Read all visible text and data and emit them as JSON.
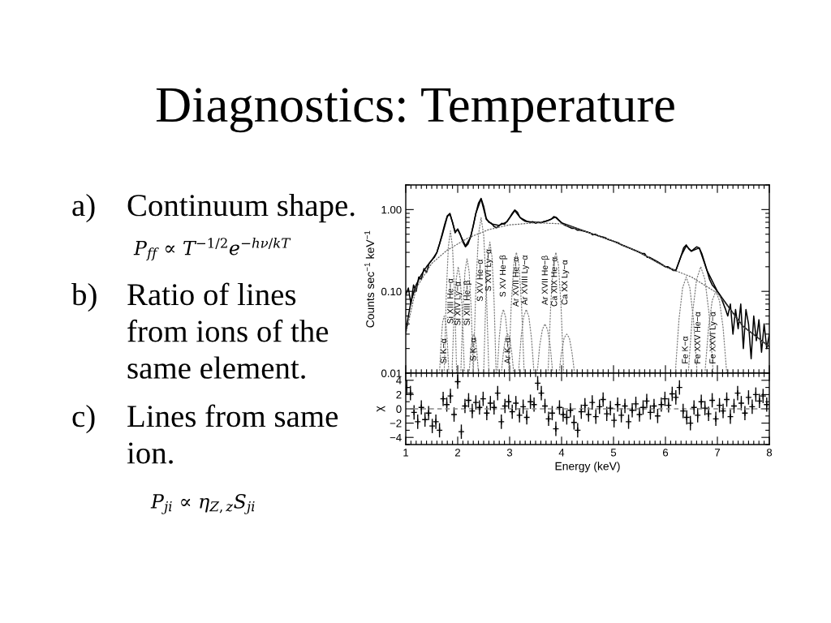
{
  "chart_data": [
    {
      "type": "line",
      "title": "Diagnostics: Temperature",
      "ylabel": "Counts sec$^{−1}$ keV$^{−1}$",
      "log": true,
      "xlim": [
        1,
        8
      ],
      "xticks": [
        1,
        2,
        3,
        4,
        5,
        6,
        7,
        8
      ],
      "ylim": [
        0.01,
        2
      ],
      "yticks": [
        {
          "value": 0.01,
          "label": "0.01"
        },
        {
          "value": 0.1,
          "label": "0.10"
        },
        {
          "value": 1,
          "label": "1.00"
        }
      ],
      "tick_labels": "y",
      "grid": false,
      "annotations": [
        "a)",
        "Continuum shape.",
        "P$_{ff}$ ∝ T$^{−1/2}$e$^{−hν/kT}$",
        "b)",
        "Ratio of lines\nfrom ions of the\nsame element.",
        "c)",
        "Lines from same\nion.",
        "P$_{ji}$ ∝ η$_{Z,z}$S$_{ji}$",
        "Si K−α",
        "Si XIII He−α",
        "Si XIV Ly−α",
        "Si XIII He−β",
        "S K−α",
        "S XV He−α",
        "S XVI Ly−α",
        "S XV He−β",
        "Ar K−α",
        "Ar XVII He−α",
        "Ar XVIII Ly−α",
        "Ar XVII He−β",
        "Ca XIX He−α",
        "Ca XX Ly−α",
        "Fe K−α",
        "Fe XXV He−α",
        "Fe XXVI Ly−α"
      ],
      "series": [
        {
          "color": "#000000",
          "x": [
            1.0,
            1.05,
            1.1,
            1.15,
            1.2,
            1.25,
            1.3,
            1.35,
            1.4,
            1.45,
            1.5,
            1.55,
            1.6,
            1.65,
            1.7,
            1.75,
            1.8,
            1.85,
            1.9,
            1.95,
            2.0,
            2.05,
            2.1,
            2.15,
            2.2,
            2.25,
            2.3,
            2.35,
            2.4,
            2.45,
            2.5,
            2.55,
            2.6,
            2.65,
            2.7,
            2.75,
            2.8,
            2.85,
            2.9,
            2.95,
            3.0,
            3.05,
            3.1,
            3.15,
            3.2,
            3.25,
            3.3,
            3.35,
            3.4,
            3.45,
            3.5,
            3.55,
            3.6,
            3.65,
            3.7,
            3.75,
            3.8,
            3.85,
            3.9,
            3.95,
            4.0,
            4.05,
            4.1,
            4.15,
            4.2,
            4.25,
            4.3,
            4.35,
            4.4,
            4.45,
            4.5,
            4.55,
            4.6,
            4.65,
            4.7,
            4.75,
            4.8,
            4.85,
            4.9,
            4.95,
            5.0,
            5.05,
            5.1,
            5.15,
            5.2,
            5.25,
            5.3,
            5.35,
            5.4,
            5.45,
            5.5,
            5.55,
            5.6,
            5.65,
            5.7,
            5.75,
            5.8,
            5.85,
            5.9,
            5.95,
            6.0,
            6.05,
            6.1,
            6.15,
            6.2,
            6.25,
            6.3,
            6.35,
            6.4,
            6.45,
            6.5,
            6.55,
            6.6,
            6.65,
            6.7,
            6.75,
            6.8,
            6.85,
            6.9,
            6.95,
            7.0,
            7.05,
            7.1,
            7.15,
            7.2,
            7.25,
            7.3,
            7.35,
            7.4,
            7.45,
            7.5,
            7.55,
            7.6,
            7.65,
            7.7,
            7.75,
            7.8,
            7.85,
            7.9,
            7.95,
            8.0
          ],
          "values": [
            0.09,
            0.11,
            0.07,
            0.12,
            0.1,
            0.15,
            0.14,
            0.19,
            0.17,
            0.22,
            0.24,
            0.26,
            0.3,
            0.38,
            0.5,
            0.66,
            0.84,
            0.9,
            0.7,
            0.52,
            0.58,
            0.5,
            0.4,
            0.35,
            0.38,
            0.47,
            0.63,
            0.9,
            1.2,
            1.37,
            1.1,
            0.78,
            0.7,
            0.68,
            0.62,
            0.6,
            0.64,
            0.68,
            0.66,
            0.72,
            0.8,
            0.9,
            0.99,
            0.93,
            0.8,
            0.75,
            0.72,
            0.71,
            0.7,
            0.71,
            0.68,
            0.7,
            0.69,
            0.71,
            0.72,
            0.74,
            0.76,
            0.82,
            0.8,
            0.74,
            0.69,
            0.65,
            0.63,
            0.61,
            0.59,
            0.59,
            0.56,
            0.56,
            0.55,
            0.54,
            0.53,
            0.52,
            0.49,
            0.5,
            0.48,
            0.47,
            0.46,
            0.45,
            0.43,
            0.42,
            0.41,
            0.4,
            0.39,
            0.37,
            0.36,
            0.35,
            0.34,
            0.33,
            0.32,
            0.31,
            0.3,
            0.29,
            0.29,
            0.26,
            0.26,
            0.25,
            0.24,
            0.23,
            0.22,
            0.21,
            0.2,
            0.2,
            0.19,
            0.18,
            0.18,
            0.22,
            0.27,
            0.34,
            0.37,
            0.33,
            0.31,
            0.33,
            0.35,
            0.34,
            0.29,
            0.23,
            0.18,
            0.14,
            0.12,
            0.11,
            0.1,
            0.09,
            0.075,
            0.062,
            0.05,
            0.07,
            0.03,
            0.06,
            0.035,
            0.07,
            0.02,
            0.06,
            0.04,
            0.015,
            0.05,
            0.025,
            0.045,
            0.018,
            0.04,
            0.02,
            0.03
          ]
        },
        {
          "color": "#000000",
          "x": [
            1.0,
            1.05,
            1.1,
            1.2,
            1.3,
            1.4,
            1.5,
            1.6,
            1.7,
            1.8,
            1.85,
            1.9,
            1.95,
            2.0,
            2.05,
            2.15,
            2.25,
            2.35,
            2.45,
            2.55,
            2.65,
            2.8,
            2.95,
            3.1,
            3.2,
            3.35,
            3.6,
            3.75,
            3.88,
            4.0,
            4.5,
            5.0,
            5.5,
            6.0,
            6.2,
            6.3,
            6.4,
            6.5,
            6.65,
            6.8,
            7.0,
            7.25,
            7.5,
            7.75,
            8.0
          ],
          "values": [
            0.032,
            0.05,
            0.075,
            0.12,
            0.16,
            0.2,
            0.24,
            0.3,
            0.48,
            0.82,
            0.88,
            0.7,
            0.54,
            0.57,
            0.49,
            0.36,
            0.46,
            0.9,
            1.35,
            0.76,
            0.67,
            0.64,
            0.71,
            0.97,
            0.8,
            0.71,
            0.69,
            0.74,
            0.81,
            0.69,
            0.53,
            0.41,
            0.3,
            0.2,
            0.18,
            0.27,
            0.36,
            0.31,
            0.34,
            0.18,
            0.1,
            0.06,
            0.037,
            0.028,
            0.021
          ]
        },
        {
          "color": "#666666",
          "line_style": "dotted",
          "x": [
            1.0,
            1.2,
            1.5,
            1.8,
            2.2,
            2.6,
            3.0,
            3.5,
            4.0,
            4.5,
            5.0,
            5.5,
            6.0,
            6.5,
            7.0,
            7.5,
            8.0
          ],
          "values": [
            0.03,
            0.11,
            0.22,
            0.32,
            0.45,
            0.57,
            0.65,
            0.69,
            0.67,
            0.53,
            0.41,
            0.3,
            0.2,
            0.15,
            0.095,
            0.037,
            0.021
          ]
        },
        {
          "color": "#808080",
          "line_style": "dotted",
          "x": [
            1.65,
            1.68,
            1.71,
            1.74,
            1.77,
            1.8,
            1.83
          ],
          "values": [
            0.01,
            0.024,
            0.042,
            0.05,
            0.042,
            0.024,
            0.01
          ]
        },
        {
          "color": "#808080",
          "line_style": "dotted",
          "x": [
            1.74,
            1.78,
            1.82,
            1.86,
            1.9,
            1.94,
            1.98
          ],
          "values": [
            0.01,
            0.093,
            0.35,
            0.55,
            0.35,
            0.093,
            0.01
          ]
        },
        {
          "color": "#808080",
          "line_style": "dotted",
          "x": [
            1.89,
            1.93,
            1.97,
            2.01,
            2.05,
            2.09,
            2.13
          ],
          "values": [
            0.01,
            0.053,
            0.14,
            0.2,
            0.14,
            0.053,
            0.01
          ]
        },
        {
          "color": "#808080",
          "line_style": "dotted",
          "x": [
            2.06,
            2.1,
            2.14,
            2.18,
            2.22,
            2.26,
            2.3
          ],
          "values": [
            0.01,
            0.06,
            0.175,
            0.25,
            0.175,
            0.06,
            0.01
          ]
        },
        {
          "color": "#808080",
          "line_style": "dotted",
          "x": [
            2.22,
            2.25,
            2.28,
            2.31,
            2.34,
            2.37,
            2.4
          ],
          "values": [
            0.01,
            0.018,
            0.027,
            0.03,
            0.027,
            0.018,
            0.01
          ]
        },
        {
          "color": "#808080",
          "line_style": "dotted",
          "x": [
            2.3,
            2.35,
            2.4,
            2.45,
            2.5,
            2.55,
            2.6
          ],
          "values": [
            0.01,
            0.114,
            0.49,
            0.8,
            0.49,
            0.114,
            0.01
          ]
        },
        {
          "color": "#808080",
          "line_style": "dotted",
          "x": [
            2.5,
            2.54,
            2.58,
            2.62,
            2.66,
            2.7,
            2.74
          ],
          "values": [
            0.01,
            0.078,
            0.265,
            0.4,
            0.265,
            0.078,
            0.01
          ]
        },
        {
          "color": "#808080",
          "line_style": "dotted",
          "x": [
            2.76,
            2.8,
            2.84,
            2.88,
            2.92,
            2.96,
            3.0
          ],
          "values": [
            0.01,
            0.027,
            0.049,
            0.06,
            0.049,
            0.027,
            0.01
          ]
        },
        {
          "color": "#808080",
          "line_style": "dotted",
          "x": [
            2.84,
            2.88,
            2.92,
            2.96,
            3.0,
            3.04,
            3.08
          ],
          "values": [
            0.01,
            0.018,
            0.027,
            0.03,
            0.027,
            0.018,
            0.01
          ]
        },
        {
          "color": "#808080",
          "line_style": "dotted",
          "x": [
            2.98,
            3.03,
            3.08,
            3.13,
            3.18,
            3.23,
            3.28
          ],
          "values": [
            0.01,
            0.066,
            0.21,
            0.3,
            0.21,
            0.066,
            0.01
          ]
        },
        {
          "color": "#808080",
          "line_style": "dotted",
          "x": [
            3.17,
            3.22,
            3.27,
            3.32,
            3.37,
            3.42,
            3.47
          ],
          "values": [
            0.01,
            0.027,
            0.049,
            0.06,
            0.049,
            0.027,
            0.01
          ]
        },
        {
          "color": "#808080",
          "line_style": "dotted",
          "x": [
            3.53,
            3.58,
            3.63,
            3.68,
            3.73,
            3.78,
            3.83
          ],
          "values": [
            0.01,
            0.022,
            0.034,
            0.04,
            0.034,
            0.022,
            0.01
          ]
        },
        {
          "color": "#808080",
          "line_style": "dotted",
          "x": [
            3.74,
            3.79,
            3.84,
            3.89,
            3.94,
            3.99,
            4.04
          ],
          "values": [
            0.01,
            0.066,
            0.21,
            0.3,
            0.21,
            0.066,
            0.01
          ]
        },
        {
          "color": "#808080",
          "line_style": "dotted",
          "x": [
            3.95,
            4.0,
            4.05,
            4.1,
            4.15,
            4.2,
            4.25
          ],
          "values": [
            0.01,
            0.018,
            0.027,
            0.03,
            0.027,
            0.018,
            0.01
          ]
        },
        {
          "color": "#808080",
          "line_style": "dotted",
          "x": [
            6.19,
            6.26,
            6.33,
            6.4,
            6.47,
            6.54,
            6.61
          ],
          "values": [
            0.01,
            0.045,
            0.11,
            0.15,
            0.11,
            0.045,
            0.01
          ]
        },
        {
          "color": "#808080",
          "line_style": "dotted",
          "x": [
            6.44,
            6.52,
            6.6,
            6.68,
            6.76,
            6.84,
            6.92
          ],
          "values": [
            0.01,
            0.053,
            0.14,
            0.2,
            0.14,
            0.053,
            0.01
          ]
        },
        {
          "color": "#808080",
          "line_style": "dotted",
          "x": [
            6.76,
            6.83,
            6.9,
            6.97,
            7.04,
            7.11,
            7.18
          ],
          "values": [
            0.01,
            0.036,
            0.077,
            0.1,
            0.077,
            0.036,
            0.01
          ]
        }
      ]
    },
    {
      "type": "scatter",
      "xlabel": "Energy (keV)",
      "ylabel": "χ",
      "xlim": [
        1,
        8
      ],
      "xticks": [
        1,
        2,
        3,
        4,
        5,
        6,
        7,
        8
      ],
      "ylim": [
        -5,
        5
      ],
      "yticks": [
        {
          "value": -4,
          "label": "−4"
        },
        {
          "value": -2,
          "label": "−2"
        },
        0,
        2,
        4
      ],
      "grid": false,
      "marker": "cross",
      "ref_lines": [
        {
          "axis": "y",
          "value": 0,
          "line_style": "dashed",
          "color": "#888888"
        }
      ],
      "series": [
        {
          "color": "#000000",
          "x": [
            1.02,
            1.09,
            1.16,
            1.23,
            1.3,
            1.37,
            1.44,
            1.51,
            1.58,
            1.65,
            1.72,
            1.79,
            1.86,
            1.93,
            2.0,
            2.07,
            2.14,
            2.21,
            2.28,
            2.35,
            2.42,
            2.49,
            2.56,
            2.63,
            2.7,
            2.77,
            2.84,
            2.91,
            2.98,
            3.05,
            3.12,
            3.19,
            3.26,
            3.33,
            3.4,
            3.47,
            3.54,
            3.61,
            3.68,
            3.75,
            3.82,
            3.89,
            3.96,
            4.03,
            4.1,
            4.17,
            4.24,
            4.31,
            4.38,
            4.45,
            4.52,
            4.59,
            4.66,
            4.73,
            4.8,
            4.87,
            4.94,
            5.01,
            5.08,
            5.15,
            5.22,
            5.29,
            5.36,
            5.43,
            5.5,
            5.57,
            5.64,
            5.71,
            5.78,
            5.85,
            5.92,
            5.99,
            6.06,
            6.13,
            6.2,
            6.27,
            6.34,
            6.41,
            6.48,
            6.55,
            6.62,
            6.69,
            6.76,
            6.83,
            6.9,
            6.97,
            7.04,
            7.11,
            7.18,
            7.25,
            7.32,
            7.39,
            7.46,
            7.53,
            7.6,
            7.67,
            7.74,
            7.81,
            7.88,
            7.95
          ],
          "values": [
            3.0,
            2.2,
            -0.5,
            -1.8,
            0.2,
            -1.5,
            -0.6,
            -2.4,
            -1.8,
            -3.0,
            1.4,
            0.6,
            1.8,
            -0.8,
            3.8,
            -3.2,
            0.4,
            1.2,
            -0.3,
            0.9,
            0.2,
            1.4,
            -0.6,
            0.8,
            0.2,
            2.2,
            -1.8,
            0.4,
            1.0,
            -0.4,
            0.8,
            -0.9,
            0.3,
            -1.2,
            1.0,
            0.6,
            3.6,
            2.2,
            0.4,
            -1.4,
            -0.6,
            -2.8,
            0.2,
            -0.8,
            -1.2,
            -0.2,
            -1.9,
            -3.0,
            -0.4,
            0.5,
            -0.8,
            0.9,
            -1.1,
            0.3,
            1.3,
            -0.7,
            0.1,
            -1.6,
            0.6,
            -0.9,
            0.4,
            -1.8,
            -0.2,
            0.7,
            -0.8,
            0.2,
            1.1,
            -0.5,
            0.4,
            -1.0,
            0.6,
            1.4,
            0.5,
            2.1,
            1.6,
            3.0,
            -0.3,
            -1.2,
            -2.0,
            0.2,
            -0.9,
            1.0,
            0.1,
            -0.7,
            1.2,
            -1.4,
            0.5,
            -0.3,
            1.3,
            -1.1,
            0.4,
            2.2,
            0.8,
            -0.6,
            1.6,
            0.3,
            2.0,
            1.1,
            1.8,
            0.6
          ],
          "errors": [
            1,
            1,
            1,
            1,
            1,
            1,
            1,
            1,
            1,
            1,
            1,
            1,
            1,
            1,
            1,
            1,
            1,
            1,
            1,
            1,
            1,
            1,
            1,
            1,
            1,
            1,
            1,
            1,
            1,
            1,
            1,
            1,
            1,
            1,
            1,
            1,
            1,
            1,
            1,
            1,
            1,
            1,
            1,
            1,
            1,
            1,
            1,
            1,
            1,
            1,
            1,
            1,
            1,
            1,
            1,
            1,
            1,
            1,
            1,
            1,
            1,
            1,
            1,
            1,
            1,
            1,
            1,
            1,
            1,
            1,
            1,
            1,
            1,
            1,
            1,
            1,
            1,
            1,
            1,
            1,
            1,
            1,
            1,
            1,
            1,
            1,
            1,
            1,
            1,
            1,
            1,
            1,
            1,
            1,
            1,
            1,
            1,
            1,
            1,
            1
          ]
        }
      ]
    }
  ]
}
